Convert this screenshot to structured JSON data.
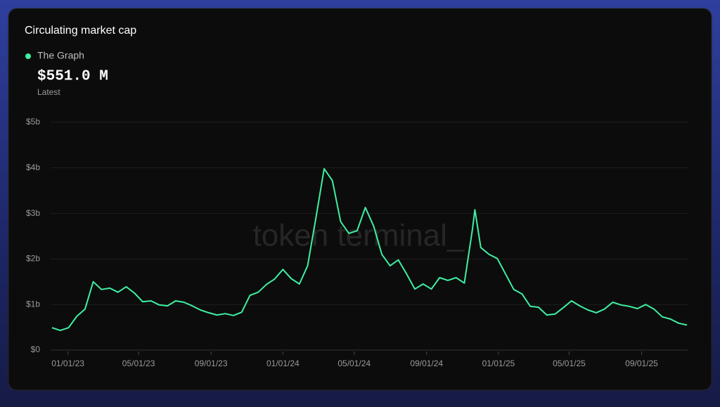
{
  "chart_data": {
    "type": "line",
    "title": "Circulating market cap",
    "latest_value": "$551.0 M",
    "latest_label": "Latest",
    "watermark": "token terminal_",
    "x": [
      "12/05/22",
      "12/19/22",
      "01/02/23",
      "01/16/23",
      "01/30/23",
      "02/13/23",
      "02/27/23",
      "03/13/23",
      "03/27/23",
      "04/10/23",
      "04/24/23",
      "05/08/23",
      "05/22/23",
      "06/05/23",
      "06/19/23",
      "07/03/23",
      "07/17/23",
      "07/31/23",
      "08/14/23",
      "08/28/23",
      "09/11/23",
      "09/25/23",
      "10/09/23",
      "10/23/23",
      "11/06/23",
      "11/20/23",
      "12/04/23",
      "12/18/23",
      "01/01/24",
      "01/15/24",
      "01/29/24",
      "02/12/24",
      "02/26/24",
      "03/11/24",
      "03/25/24",
      "04/08/24",
      "04/22/24",
      "05/06/24",
      "05/20/24",
      "06/03/24",
      "06/17/24",
      "07/01/24",
      "07/15/24",
      "07/29/24",
      "08/12/24",
      "08/26/24",
      "09/09/24",
      "09/23/24",
      "10/07/24",
      "10/21/24",
      "11/04/24",
      "11/18/24",
      "11/22/24",
      "12/02/24",
      "12/16/24",
      "12/30/24",
      "01/13/25",
      "01/27/25",
      "02/10/25",
      "02/24/25",
      "03/10/25",
      "03/24/25",
      "04/07/25",
      "04/21/25",
      "05/05/25",
      "05/19/25",
      "06/02/25",
      "06/16/25",
      "06/30/25",
      "07/14/25",
      "07/28/25",
      "08/11/25",
      "08/25/25",
      "09/08/25",
      "09/22/25",
      "10/06/25",
      "10/20/25",
      "11/03/25",
      "11/17/25"
    ],
    "series": [
      {
        "name": "The Graph",
        "color": "#3ef0a0",
        "values": [
          0.49,
          0.43,
          0.49,
          0.74,
          0.9,
          1.5,
          1.33,
          1.36,
          1.27,
          1.39,
          1.25,
          1.06,
          1.08,
          0.99,
          0.97,
          1.08,
          1.05,
          0.97,
          0.88,
          0.82,
          0.77,
          0.8,
          0.76,
          0.83,
          1.2,
          1.27,
          1.44,
          1.56,
          1.77,
          1.57,
          1.45,
          1.85,
          2.9,
          3.98,
          3.72,
          2.82,
          2.56,
          2.62,
          3.13,
          2.72,
          2.1,
          1.85,
          1.98,
          1.67,
          1.34,
          1.45,
          1.34,
          1.59,
          1.53,
          1.59,
          1.47,
          2.67,
          3.08,
          2.25,
          2.1,
          2.01,
          1.67,
          1.33,
          1.23,
          0.96,
          0.94,
          0.77,
          0.79,
          0.93,
          1.08,
          0.97,
          0.88,
          0.82,
          0.9,
          1.05,
          0.99,
          0.96,
          0.91,
          1.0,
          0.9,
          0.73,
          0.68,
          0.59,
          0.55
        ]
      }
    ],
    "xlim": [
      "12/05/22",
      "11/17/25"
    ],
    "xticks": [
      "01/01/23",
      "05/01/23",
      "09/01/23",
      "01/01/24",
      "05/01/24",
      "09/01/24",
      "01/01/25",
      "05/01/25",
      "09/01/25"
    ],
    "ylim": [
      0,
      5
    ],
    "yticks": [
      {
        "value": 0,
        "label": "$0"
      },
      {
        "value": 1,
        "label": "$1b"
      },
      {
        "value": 2,
        "label": "$2b"
      },
      {
        "value": 3,
        "label": "$3b"
      },
      {
        "value": 4,
        "label": "$4b"
      },
      {
        "value": 5,
        "label": "$5b"
      }
    ],
    "grid": true
  }
}
